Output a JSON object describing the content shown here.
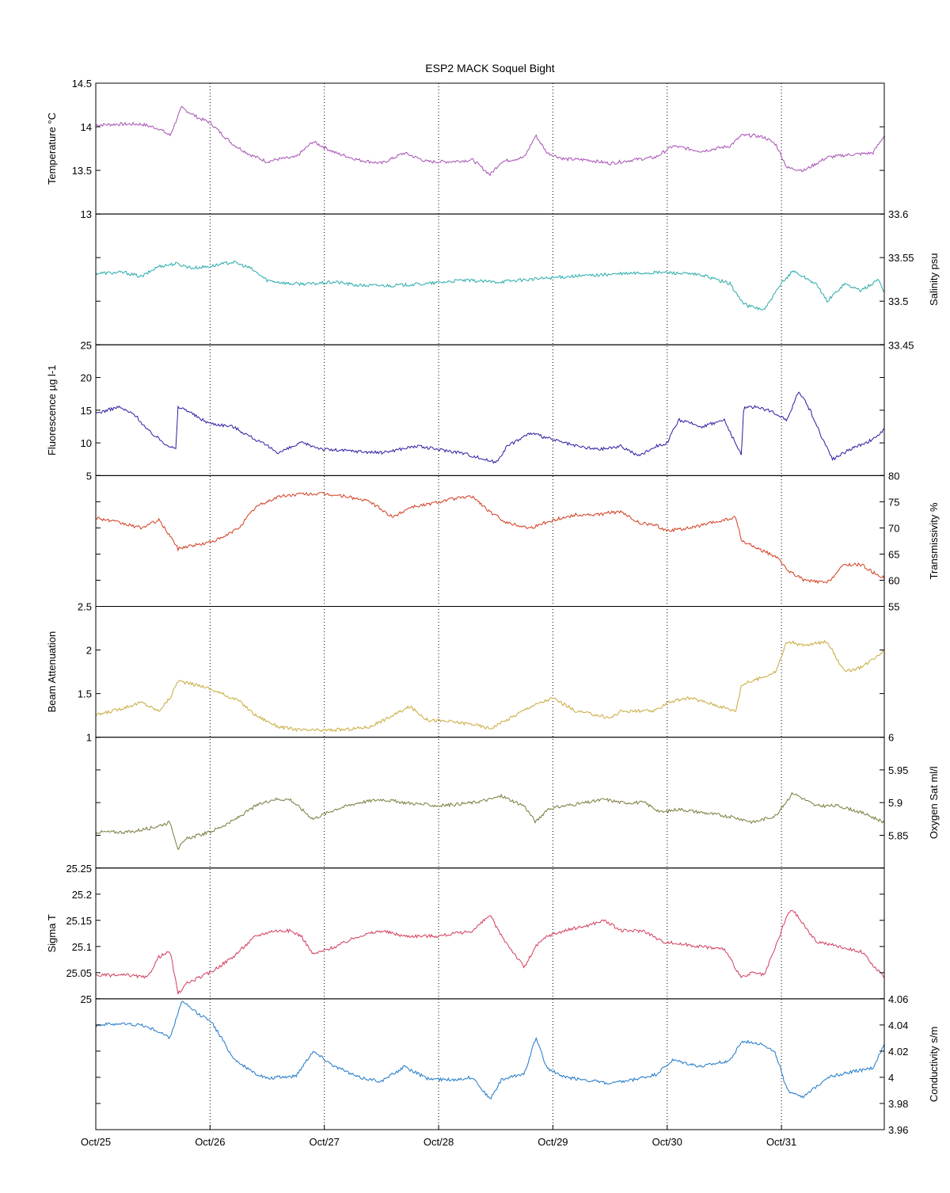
{
  "chart_data": {
    "type": "line",
    "title": "ESP2 MACK  Soquel Bight",
    "x_tick_labels": [
      "Oct/25",
      "Oct/26",
      "Oct/27",
      "Oct/28",
      "Oct/29",
      "Oct/30",
      "Oct/31"
    ],
    "x_range_days": [
      0,
      6.9
    ],
    "grid": "vertical dotted lines at each day",
    "panels": [
      {
        "name": "temperature",
        "ylabel": "Temperature °C",
        "axis_side": "left",
        "ylim": [
          13,
          14.5
        ],
        "yticks": [
          13,
          13.5,
          14,
          14.5
        ],
        "color": "#a650b4",
        "x": [
          0,
          0.2,
          0.4,
          0.55,
          0.65,
          0.75,
          0.8,
          0.9,
          1.0,
          1.1,
          1.2,
          1.35,
          1.5,
          1.6,
          1.75,
          1.9,
          2.1,
          2.3,
          2.5,
          2.7,
          2.9,
          3.1,
          3.3,
          3.45,
          3.55,
          3.75,
          3.85,
          3.95,
          4.1,
          4.3,
          4.5,
          4.7,
          4.9,
          5.05,
          5.3,
          5.55,
          5.65,
          5.75,
          5.85,
          5.95,
          6.05,
          6.2,
          6.4,
          6.6,
          6.8,
          6.9
        ],
        "y": [
          14.02,
          14.03,
          14.03,
          13.98,
          13.9,
          14.22,
          14.18,
          14.1,
          14.05,
          13.92,
          13.8,
          13.68,
          13.6,
          13.63,
          13.65,
          13.83,
          13.7,
          13.62,
          13.58,
          13.7,
          13.6,
          13.6,
          13.62,
          13.45,
          13.6,
          13.65,
          13.9,
          13.7,
          13.63,
          13.62,
          13.58,
          13.62,
          13.65,
          13.78,
          13.72,
          13.78,
          13.9,
          13.9,
          13.88,
          13.8,
          13.53,
          13.5,
          13.65,
          13.68,
          13.7,
          13.9
        ]
      },
      {
        "name": "salinity",
        "ylabel": "Salinity psu",
        "axis_side": "right",
        "ylim": [
          33.45,
          33.6
        ],
        "yticks": [
          33.45,
          33.5,
          33.55,
          33.6
        ],
        "color": "#28aaaa",
        "x": [
          0,
          0.25,
          0.4,
          0.55,
          0.7,
          0.85,
          1.0,
          1.2,
          1.35,
          1.5,
          1.7,
          1.9,
          2.1,
          2.3,
          2.6,
          2.9,
          3.2,
          3.5,
          3.8,
          4.1,
          4.4,
          4.7,
          5.0,
          5.3,
          5.55,
          5.65,
          5.7,
          5.85,
          6.0,
          6.1,
          6.3,
          6.4,
          6.55,
          6.7,
          6.85,
          6.9
        ],
        "y": [
          33.532,
          33.533,
          33.528,
          33.54,
          33.543,
          33.538,
          33.54,
          33.545,
          33.538,
          33.524,
          33.52,
          33.52,
          33.522,
          33.518,
          33.518,
          33.52,
          33.524,
          33.522,
          33.525,
          33.528,
          33.53,
          33.532,
          33.533,
          33.53,
          33.52,
          33.5,
          33.495,
          33.49,
          33.52,
          33.535,
          33.52,
          33.5,
          33.52,
          33.512,
          33.525,
          33.51
        ]
      },
      {
        "name": "fluorescence",
        "ylabel": "Fluorescence µg l-1",
        "axis_side": "left",
        "ylim": [
          5,
          25
        ],
        "yticks": [
          5,
          10,
          15,
          20,
          25
        ],
        "color": "#2a1ea0",
        "x": [
          0,
          0.2,
          0.35,
          0.45,
          0.6,
          0.7,
          0.72,
          0.8,
          0.9,
          1.0,
          1.2,
          1.35,
          1.5,
          1.6,
          1.8,
          2.0,
          2.2,
          2.5,
          2.8,
          3.0,
          3.2,
          3.4,
          3.5,
          3.6,
          3.8,
          4.0,
          4.2,
          4.4,
          4.6,
          4.75,
          4.9,
          5.0,
          5.1,
          5.3,
          5.5,
          5.65,
          5.67,
          5.8,
          5.95,
          6.05,
          6.15,
          6.25,
          6.35,
          6.45,
          6.6,
          6.8,
          6.9
        ],
        "y": [
          14.5,
          15.5,
          14.2,
          12.0,
          10.0,
          9.0,
          15.5,
          15.0,
          13.8,
          13.0,
          12.5,
          11.0,
          9.5,
          8.5,
          10.0,
          9.0,
          8.8,
          8.5,
          9.5,
          9.0,
          8.5,
          7.5,
          7.0,
          9.5,
          11.5,
          10.5,
          9.5,
          9.0,
          9.5,
          8.0,
          9.5,
          10.0,
          13.5,
          12.5,
          13.5,
          8.0,
          15.5,
          15.5,
          14.5,
          13.5,
          18.0,
          15.0,
          11.0,
          7.5,
          9.0,
          10.5,
          12.0
        ]
      },
      {
        "name": "transmissivity",
        "ylabel": "Transmissivity %",
        "axis_side": "right",
        "ylim": [
          55,
          80
        ],
        "yticks": [
          55,
          60,
          65,
          70,
          75,
          80
        ],
        "color": "#d23c1e",
        "x": [
          0,
          0.2,
          0.4,
          0.55,
          0.65,
          0.72,
          0.8,
          0.95,
          1.1,
          1.25,
          1.4,
          1.6,
          1.8,
          2.0,
          2.2,
          2.4,
          2.6,
          2.75,
          2.9,
          3.1,
          3.3,
          3.45,
          3.6,
          3.8,
          4.0,
          4.2,
          4.4,
          4.5,
          4.6,
          4.75,
          4.9,
          5.0,
          5.2,
          5.4,
          5.6,
          5.65,
          5.8,
          5.95,
          6.05,
          6.2,
          6.4,
          6.55,
          6.7,
          6.8,
          6.9
        ],
        "y": [
          72.0,
          71.0,
          70.0,
          71.5,
          68.5,
          66.0,
          66.5,
          67.0,
          68.0,
          70.0,
          74.0,
          76.0,
          76.5,
          76.5,
          76.0,
          75.0,
          72.0,
          74.0,
          74.5,
          75.5,
          76.0,
          73.0,
          71.0,
          70.0,
          71.5,
          72.5,
          72.5,
          73.0,
          73.0,
          71.0,
          70.5,
          69.5,
          70.0,
          71.0,
          72.0,
          67.5,
          66.0,
          64.5,
          62.0,
          60.0,
          59.5,
          63.0,
          63.0,
          61.5,
          60.5
        ]
      },
      {
        "name": "beam_attenuation",
        "ylabel": "Beam Attenuation",
        "axis_side": "left",
        "ylim": [
          1,
          2.5
        ],
        "yticks": [
          1,
          1.5,
          2,
          2.5
        ],
        "color": "#c8aa3c",
        "x": [
          0,
          0.2,
          0.4,
          0.55,
          0.65,
          0.72,
          0.8,
          0.95,
          1.1,
          1.25,
          1.4,
          1.6,
          1.8,
          2.0,
          2.2,
          2.4,
          2.6,
          2.75,
          2.9,
          3.1,
          3.3,
          3.45,
          3.6,
          3.8,
          4.0,
          4.2,
          4.4,
          4.5,
          4.6,
          4.75,
          4.9,
          5.0,
          5.2,
          5.4,
          5.6,
          5.65,
          5.8,
          5.95,
          6.05,
          6.2,
          6.4,
          6.55,
          6.7,
          6.8,
          6.9
        ],
        "y": [
          1.25,
          1.32,
          1.4,
          1.3,
          1.45,
          1.65,
          1.62,
          1.58,
          1.5,
          1.42,
          1.25,
          1.12,
          1.08,
          1.08,
          1.09,
          1.12,
          1.25,
          1.35,
          1.2,
          1.18,
          1.15,
          1.1,
          1.2,
          1.35,
          1.45,
          1.3,
          1.25,
          1.22,
          1.3,
          1.3,
          1.3,
          1.4,
          1.45,
          1.38,
          1.3,
          1.6,
          1.67,
          1.75,
          2.1,
          2.05,
          2.1,
          1.75,
          1.8,
          1.9,
          2.0
        ]
      },
      {
        "name": "oxygen_sat",
        "ylabel": "Oxygen Sat ml/l",
        "axis_side": "right",
        "ylim": [
          5.8,
          6.0
        ],
        "yticks": [
          5.85,
          5.9,
          5.95,
          6
        ],
        "color": "#7a7a3c",
        "x": [
          0,
          0.3,
          0.5,
          0.65,
          0.72,
          0.8,
          1.0,
          1.2,
          1.4,
          1.55,
          1.7,
          1.8,
          1.9,
          2.1,
          2.3,
          2.5,
          2.7,
          3.0,
          3.3,
          3.45,
          3.55,
          3.75,
          3.85,
          3.95,
          4.1,
          4.3,
          4.45,
          4.6,
          4.8,
          4.95,
          5.1,
          5.3,
          5.5,
          5.65,
          5.75,
          5.85,
          5.95,
          6.1,
          6.3,
          6.5,
          6.7,
          6.9
        ],
        "y": [
          5.855,
          5.855,
          5.862,
          5.87,
          5.83,
          5.845,
          5.855,
          5.872,
          5.895,
          5.905,
          5.905,
          5.89,
          5.875,
          5.89,
          5.9,
          5.905,
          5.9,
          5.895,
          5.9,
          5.905,
          5.91,
          5.895,
          5.87,
          5.89,
          5.895,
          5.9,
          5.905,
          5.9,
          5.9,
          5.885,
          5.89,
          5.885,
          5.88,
          5.875,
          5.87,
          5.875,
          5.88,
          5.915,
          5.895,
          5.895,
          5.885,
          5.87
        ]
      },
      {
        "name": "sigma_t",
        "ylabel": "Sigma T",
        "axis_side": "left",
        "ylim": [
          25,
          25.25
        ],
        "yticks": [
          25,
          25.05,
          25.1,
          25.15,
          25.2,
          25.25
        ],
        "color": "#d23c5a",
        "x": [
          0,
          0.3,
          0.45,
          0.55,
          0.65,
          0.72,
          0.8,
          1.0,
          1.2,
          1.4,
          1.55,
          1.7,
          1.8,
          1.9,
          2.1,
          2.3,
          2.5,
          2.7,
          3.0,
          3.3,
          3.45,
          3.55,
          3.75,
          3.85,
          3.95,
          4.1,
          4.3,
          4.45,
          4.6,
          4.8,
          4.95,
          5.1,
          5.3,
          5.5,
          5.65,
          5.75,
          5.85,
          5.95,
          6.05,
          6.1,
          6.2,
          6.3,
          6.5,
          6.7,
          6.9
        ],
        "y": [
          25.045,
          25.045,
          25.04,
          25.08,
          25.09,
          25.01,
          25.03,
          25.05,
          25.08,
          25.12,
          25.13,
          25.13,
          25.12,
          25.085,
          25.1,
          25.12,
          25.13,
          25.12,
          25.12,
          25.13,
          25.16,
          25.12,
          25.06,
          25.1,
          25.12,
          25.13,
          25.14,
          25.15,
          25.13,
          25.13,
          25.11,
          25.105,
          25.1,
          25.095,
          25.04,
          25.05,
          25.045,
          25.1,
          25.16,
          25.17,
          25.14,
          25.11,
          25.1,
          25.09,
          25.04
        ]
      },
      {
        "name": "conductivity",
        "ylabel": "Conductivity s/m",
        "axis_side": "right",
        "ylim": [
          3.96,
          4.06
        ],
        "yticks": [
          3.96,
          3.98,
          4,
          4.02,
          4.04,
          4.06
        ],
        "color": "#1e78c8",
        "x": [
          0,
          0.2,
          0.4,
          0.55,
          0.65,
          0.75,
          0.8,
          0.9,
          1.0,
          1.1,
          1.2,
          1.35,
          1.5,
          1.6,
          1.75,
          1.9,
          2.1,
          2.3,
          2.5,
          2.7,
          2.9,
          3.1,
          3.3,
          3.45,
          3.55,
          3.75,
          3.85,
          3.95,
          4.1,
          4.3,
          4.5,
          4.7,
          4.9,
          5.05,
          5.3,
          5.55,
          5.65,
          5.75,
          5.85,
          5.95,
          6.05,
          6.2,
          6.4,
          6.6,
          6.8,
          6.9
        ],
        "y": [
          4.04,
          4.041,
          4.04,
          4.035,
          4.03,
          4.058,
          4.055,
          4.048,
          4.044,
          4.03,
          4.015,
          4.005,
          3.999,
          4.0,
          4.001,
          4.02,
          4.008,
          4.0,
          3.997,
          4.008,
          3.999,
          3.998,
          4.0,
          3.983,
          3.998,
          4.003,
          4.03,
          4.007,
          4.0,
          3.998,
          3.995,
          3.998,
          4.002,
          4.013,
          4.008,
          4.013,
          4.027,
          4.027,
          4.025,
          4.018,
          3.99,
          3.985,
          4.0,
          4.004,
          4.007,
          4.025
        ]
      }
    ]
  }
}
